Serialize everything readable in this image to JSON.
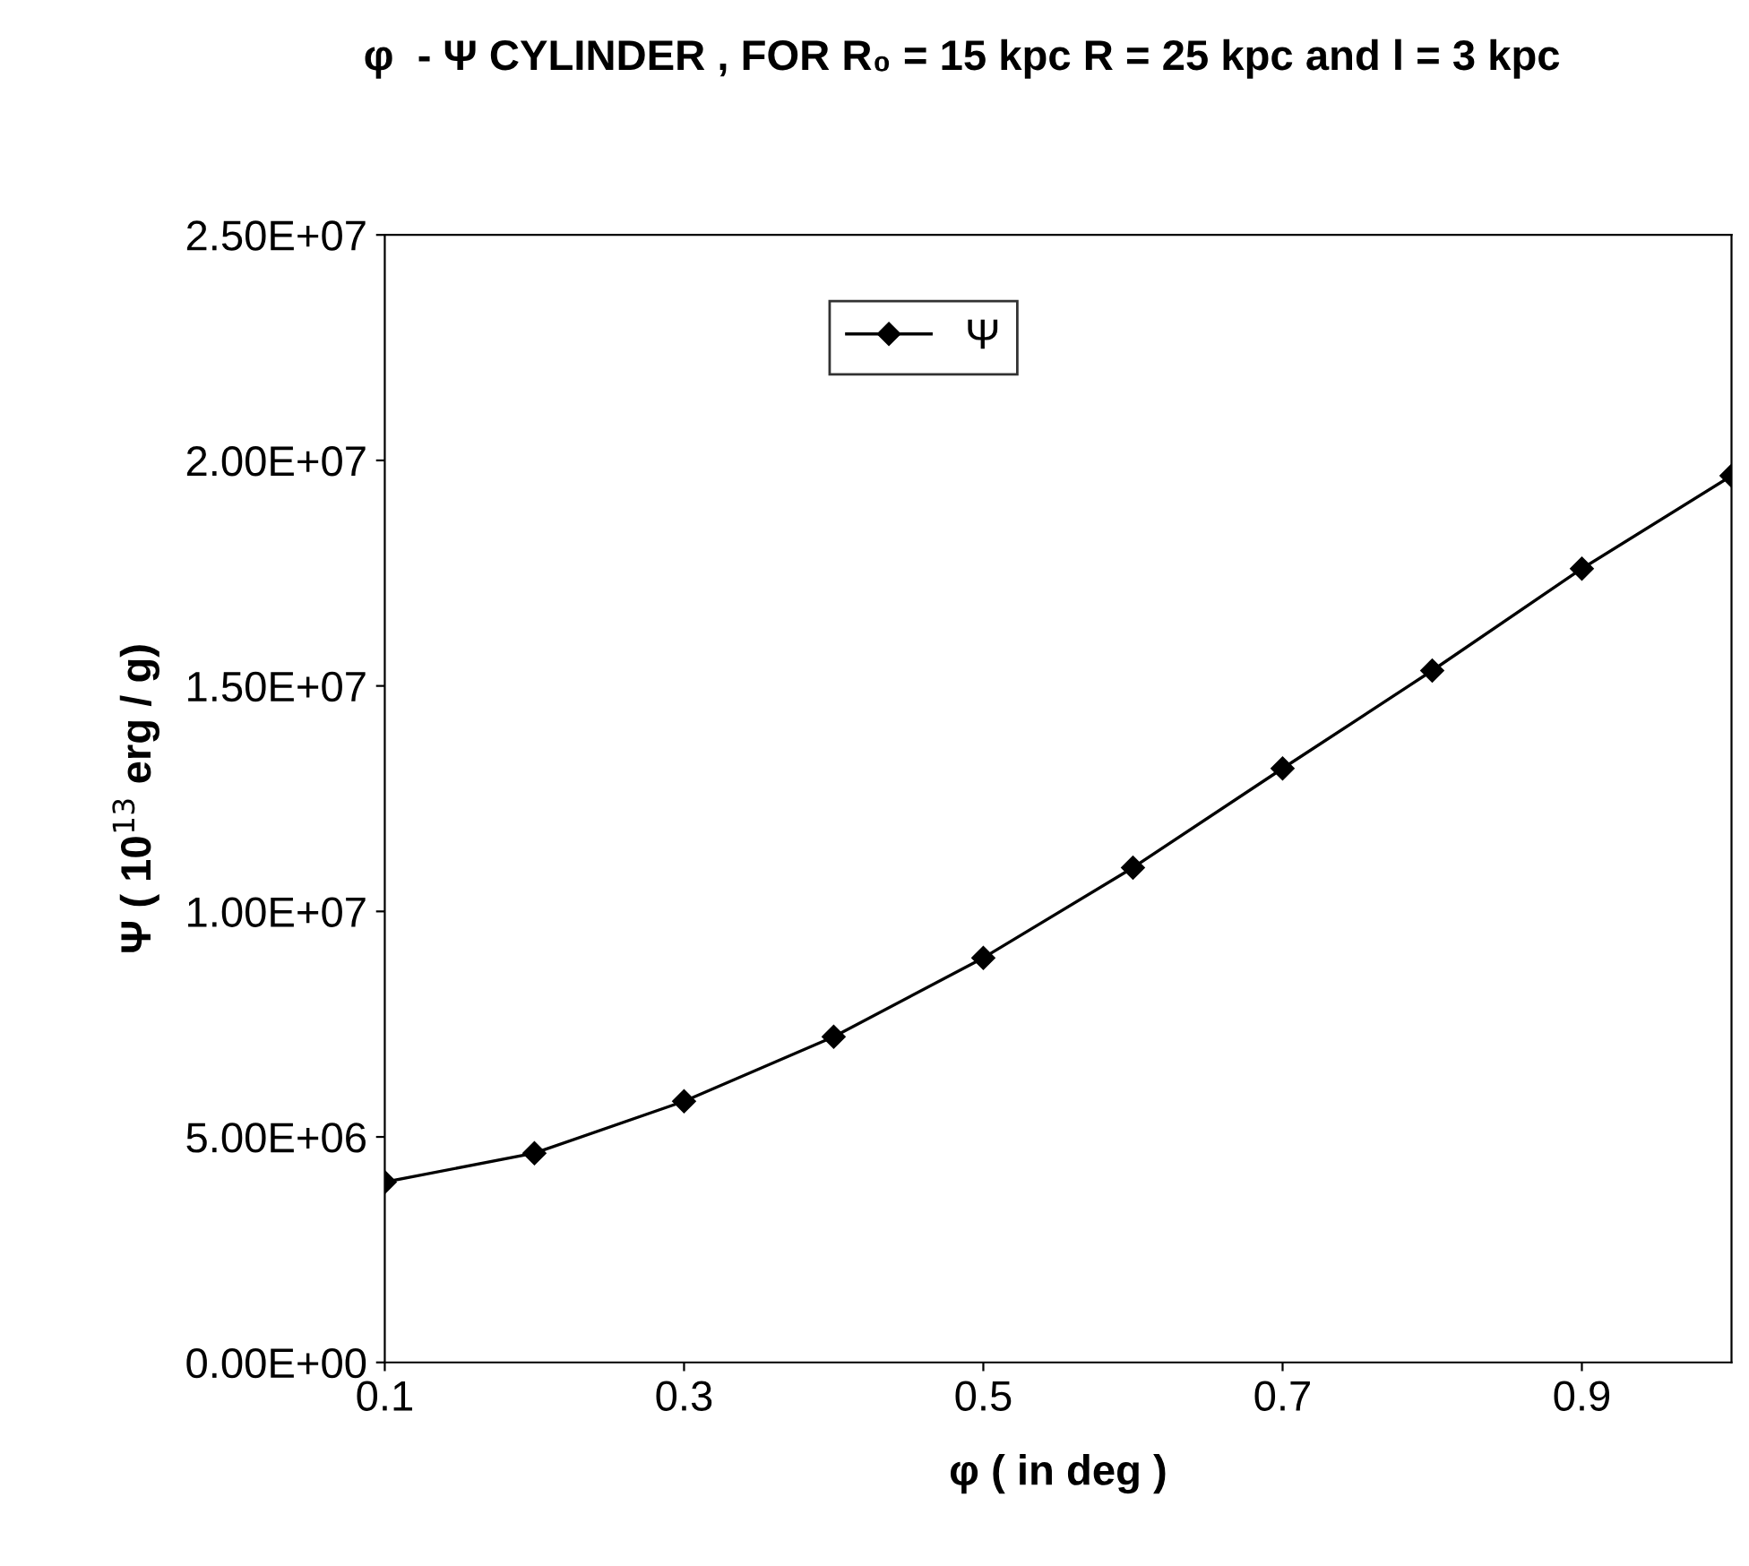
{
  "chart_data": {
    "type": "line",
    "title": "φ  - Ψ CYLINDER , FOR R₀ = 15 kpc R = 25 kpc and l = 3 kpc",
    "xlabel": "φ ( in deg )",
    "ylabel": "Ψ ( 10$^{13}$ erg / g)",
    "x": [
      0.1,
      0.2,
      0.3,
      0.4,
      0.5,
      0.6,
      0.7,
      0.8,
      0.9,
      1.0
    ],
    "series": [
      {
        "name": "Ψ",
        "color": "#000000",
        "values": [
          4000000.0,
          4640000.0,
          5790000.0,
          7220000.0,
          8970000.0,
          10970000.0,
          13170000.0,
          15340000.0,
          17600000.0,
          19660000.0
        ]
      }
    ],
    "xlim": [
      0.1,
      1.0
    ],
    "xticks": [
      0.1,
      0.3,
      0.5,
      0.7,
      0.9
    ],
    "ylim": [
      0,
      25000000
    ],
    "yticks": [
      {
        "value": 0,
        "label": "0.00E+00"
      },
      {
        "value": 5000000,
        "label": "5.00E+06"
      },
      {
        "value": 10000000,
        "label": "1.00E+07"
      },
      {
        "value": 15000000,
        "label": "1.50E+07"
      },
      {
        "value": 20000000,
        "label": "2.00E+07"
      },
      {
        "value": 25000000,
        "label": "2.50E+07"
      }
    ],
    "marker": "diamond",
    "line_style": "solid",
    "grid": false,
    "legend": "top"
  }
}
